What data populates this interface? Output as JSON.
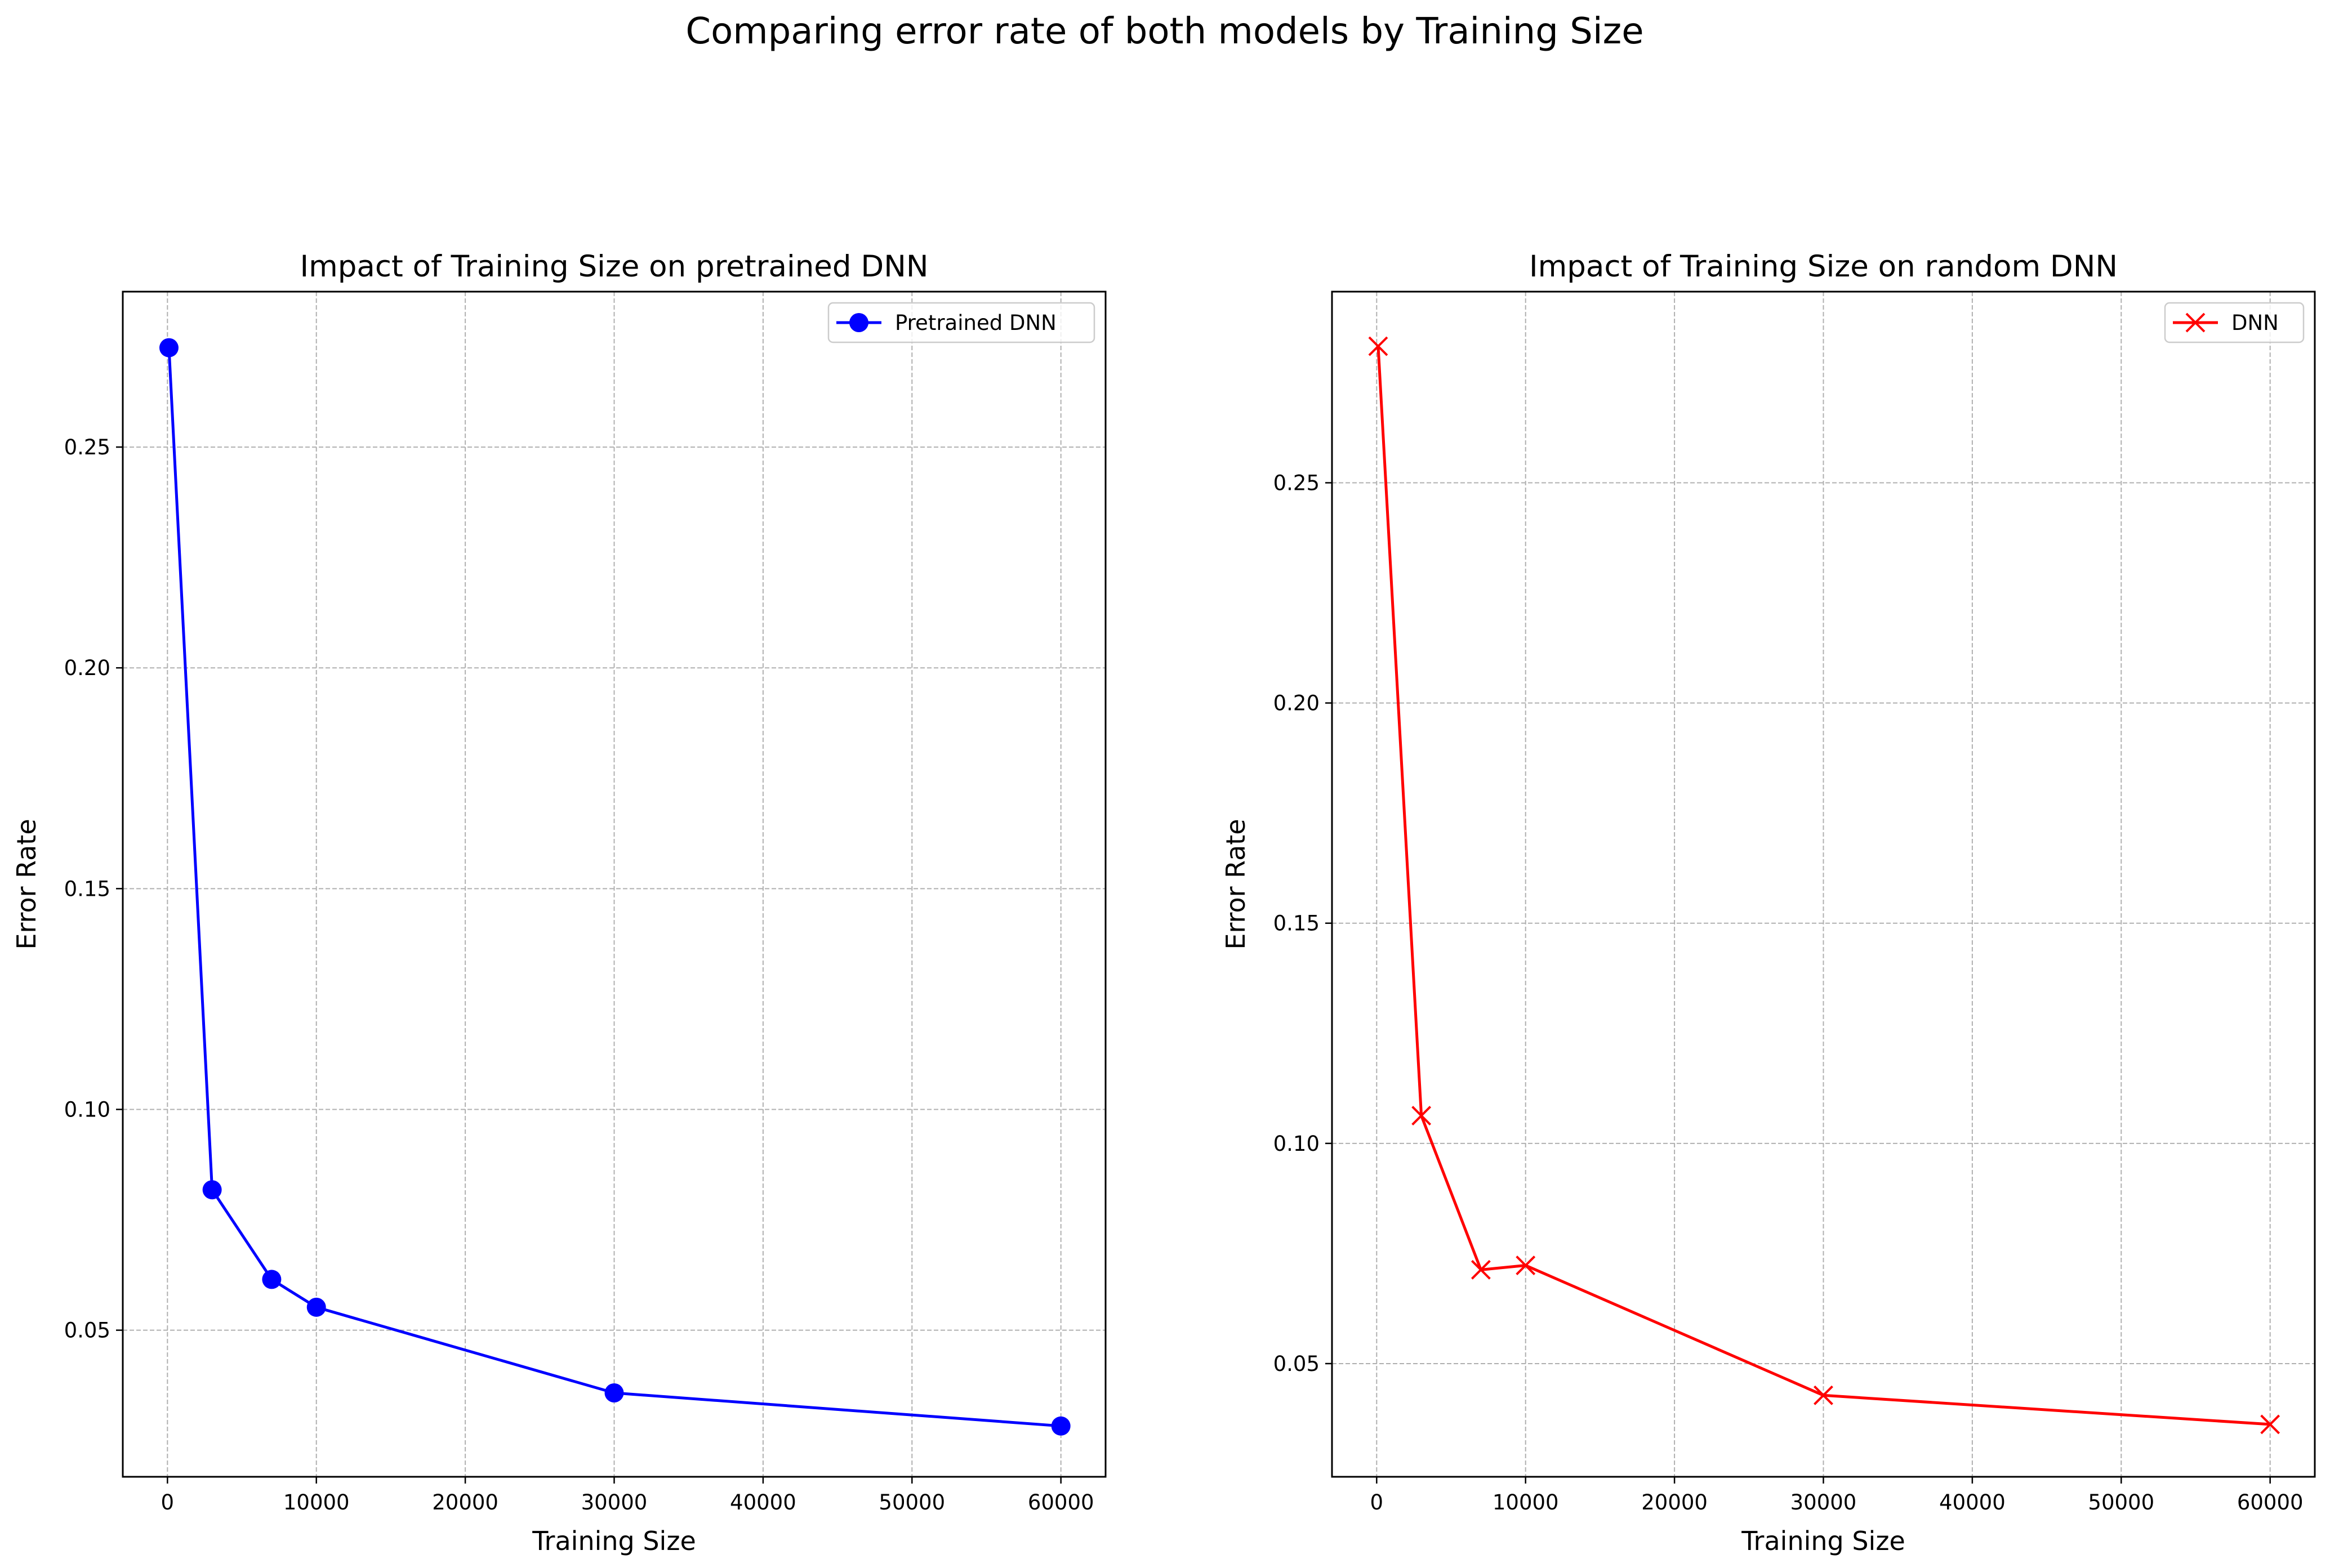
{
  "figure": {
    "suptitle": "Comparing error rate of both models by Training Size"
  },
  "chart_data": [
    {
      "type": "line",
      "title": "Impact of Training Size on pretrained DNN",
      "xlabel": "Training Size",
      "ylabel": "Error Rate",
      "xlim": [
        -3000,
        63000
      ],
      "ylim": [
        0.0168,
        0.2852
      ],
      "xticks": [
        0,
        10000,
        20000,
        30000,
        40000,
        50000,
        60000
      ],
      "yticks": [
        0.05,
        0.1,
        0.15,
        0.2,
        0.25
      ],
      "grid": true,
      "legend_position": "upper right",
      "series": [
        {
          "name": "Pretrained DNN",
          "color": "#0000ff",
          "marker": "circle",
          "x": [
            100,
            3000,
            7000,
            10000,
            30000,
            60000
          ],
          "y": [
            0.2725,
            0.0818,
            0.0615,
            0.0552,
            0.0358,
            0.0283
          ]
        }
      ]
    },
    {
      "type": "line",
      "title": "Impact of Training Size on random DNN",
      "xlabel": "Training Size",
      "ylabel": "Error Rate",
      "xlim": [
        -3000,
        63000
      ],
      "ylim": [
        0.0243,
        0.2934
      ],
      "xticks": [
        0,
        10000,
        20000,
        30000,
        40000,
        50000,
        60000
      ],
      "yticks": [
        0.05,
        0.1,
        0.15,
        0.2,
        0.25
      ],
      "grid": true,
      "legend_position": "upper right",
      "series": [
        {
          "name": "DNN",
          "color": "#ff0000",
          "marker": "x",
          "x": [
            100,
            3000,
            7000,
            10000,
            30000,
            60000
          ],
          "y": [
            0.281,
            0.1063,
            0.0713,
            0.0723,
            0.0428,
            0.0362
          ]
        }
      ]
    }
  ]
}
